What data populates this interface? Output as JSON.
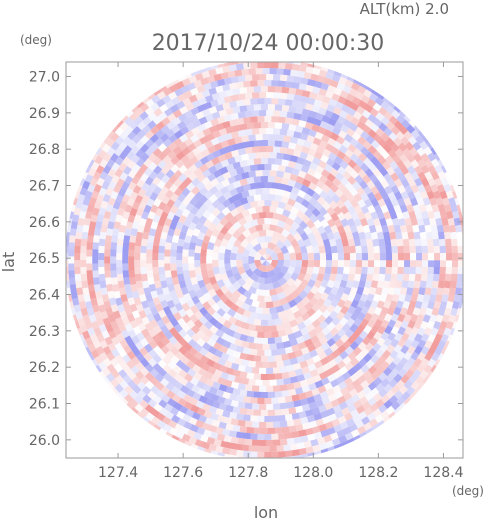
{
  "header": {
    "alt_label": "ALT(km) 2.0",
    "datetime": "2017/10/24 00:00:30"
  },
  "chart_data": {
    "type": "heatmap",
    "title": "2017/10/24 00:00:30",
    "subtitle": "ALT(km) 2.0",
    "xlabel": "lon",
    "ylabel": "lat",
    "x_unit": "(deg)",
    "y_unit": "(deg)",
    "xlim": [
      127.24,
      128.46
    ],
    "ylim": [
      25.95,
      27.04
    ],
    "x_ticks": [
      "127.4",
      "127.6",
      "127.8",
      "128.0",
      "128.2",
      "128.4"
    ],
    "y_ticks": [
      "26.0",
      "26.1",
      "26.2",
      "26.3",
      "26.4",
      "26.5",
      "26.6",
      "26.7",
      "26.8",
      "26.9",
      "27.0"
    ],
    "center": {
      "lon": 127.855,
      "lat": 26.495
    },
    "colormap": {
      "negative": "#8c8cf0",
      "zero": "#ffffff",
      "positive": "#f08c8c"
    },
    "grid": false,
    "legend": "none"
  }
}
